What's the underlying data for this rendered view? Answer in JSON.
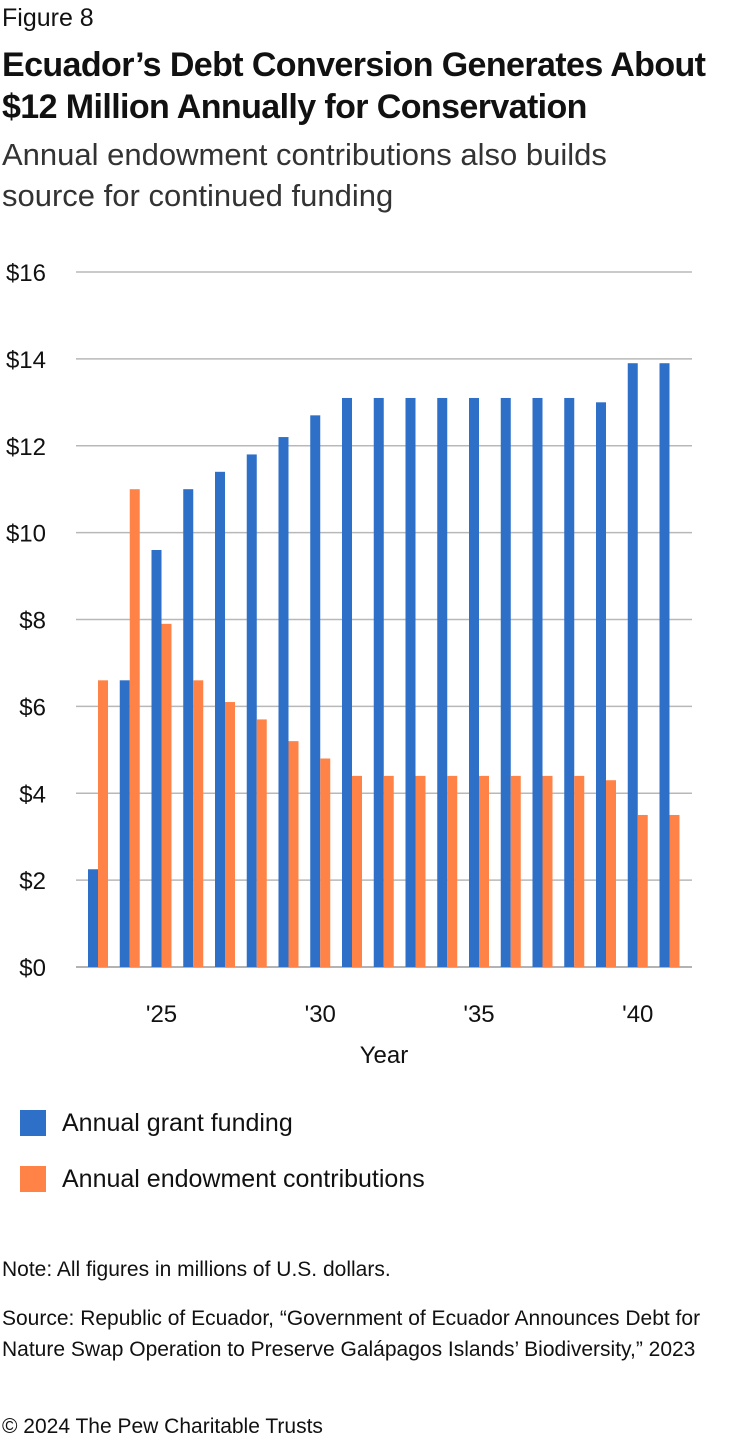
{
  "figure_label": "Figure 8",
  "title": "Ecuador’s Debt Conversion Generates About $12 Million Annually for Conservation",
  "subtitle": "Annual endowment contributions also builds source for continued funding",
  "chart_data": {
    "type": "bar",
    "xlabel": "Year",
    "ylabel": "",
    "ylim": [
      0,
      16
    ],
    "y_ticks": [
      0,
      2,
      4,
      6,
      8,
      10,
      12,
      14,
      16
    ],
    "y_tick_labels": [
      "$0",
      "$2",
      "$4",
      "$6",
      "$8",
      "$10",
      "$12",
      "$14",
      "$16"
    ],
    "categories": [
      2023,
      2024,
      2025,
      2026,
      2027,
      2028,
      2029,
      2030,
      2031,
      2032,
      2033,
      2034,
      2035,
      2036,
      2037,
      2038,
      2039,
      2040,
      2041
    ],
    "x_tick_labels": [
      {
        "year": 2025,
        "label": "'25"
      },
      {
        "year": 2030,
        "label": "'30"
      },
      {
        "year": 2035,
        "label": "'35"
      },
      {
        "year": 2040,
        "label": "'40"
      }
    ],
    "grid": true,
    "legend_position": "bottom-left",
    "series": [
      {
        "name": "Annual grant funding",
        "color": "#2e6fc8",
        "values": [
          2.25,
          6.6,
          9.6,
          11.0,
          11.4,
          11.8,
          12.2,
          12.7,
          13.1,
          13.1,
          13.1,
          13.1,
          13.1,
          13.1,
          13.1,
          13.1,
          13.0,
          13.9,
          13.9
        ]
      },
      {
        "name": "Annual endowment contributions",
        "color": "#ff8347",
        "values": [
          6.6,
          11.0,
          7.9,
          6.6,
          6.1,
          5.7,
          5.2,
          4.8,
          4.4,
          4.4,
          4.4,
          4.4,
          4.4,
          4.4,
          4.4,
          4.4,
          4.3,
          3.5,
          3.5
        ]
      }
    ]
  },
  "note": "Note: All figures in millions of U.S. dollars.",
  "source": "Source: Republic of Ecuador, “Government of Ecuador Announces Debt for Nature Swap Operation to Preserve Galápagos Islands’ Biodiversity,” 2023",
  "copyright": "© 2024 The Pew Charitable Trusts"
}
